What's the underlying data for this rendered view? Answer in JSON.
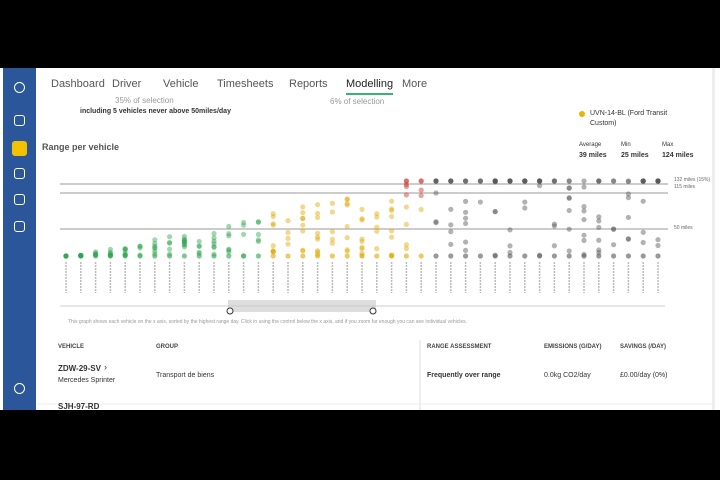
{
  "nav": [
    "Dashboard",
    "Driver",
    "Vehicle",
    "Timesheets",
    "Reports",
    "Modelling",
    "More"
  ],
  "stats": {
    "share_a": "35% of selection",
    "note_a": "including 5 vehicles never above 50miles/day",
    "share_b": "6% of selection",
    "legend_vehicle": "UVN-14-BL (Ford Transit Custom)"
  },
  "panel": {
    "title": "Range per vehicle",
    "summary": [
      {
        "label": "Average",
        "value": "39 miles"
      },
      {
        "label": "Min",
        "value": "25 miles"
      },
      {
        "label": "Max",
        "value": "124 miles"
      }
    ],
    "lines": [
      "132 miles (15%)",
      "115 miles",
      "50 miles"
    ],
    "caption": "This graph shows each vehicle on the x axis, sorted by the highest range day. Click in using the control below the x axis, and if you zoom far enough you can see individual vehicles."
  },
  "table": {
    "headers": [
      "VEHICLE",
      "GROUP",
      "RANGE ASSESSMENT",
      "EMISSIONS (G/DAY)",
      "SAVINGS (/DAY)"
    ],
    "rows": [
      {
        "vehicle": "ZDW-29-SV",
        "model": "Mercedes Sprinter",
        "group": "Transport de biens",
        "assessment": "Frequently over range",
        "emissions": "0.0kg CO2/day",
        "savings": "£0.00/day (0%)"
      },
      {
        "vehicle": "SJH-97-RD"
      }
    ]
  }
}
